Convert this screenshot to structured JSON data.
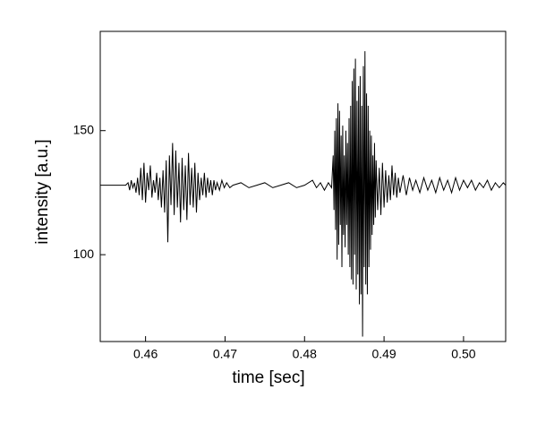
{
  "chart_data": {
    "type": "line",
    "xlabel": "time [sec]",
    "ylabel": "intensity [a.u.]",
    "color": "#000000",
    "x": [
      0.4543,
      0.4575,
      0.4578,
      0.458,
      0.4582,
      0.4584,
      0.4586,
      0.4588,
      0.459,
      0.4592,
      0.4594,
      0.4596,
      0.4598,
      0.46,
      0.4602,
      0.4604,
      0.4606,
      0.4608,
      0.461,
      0.4612,
      0.4614,
      0.4616,
      0.4618,
      0.462,
      0.4622,
      0.4624,
      0.4626,
      0.4628,
      0.463,
      0.4632,
      0.4634,
      0.4636,
      0.4638,
      0.464,
      0.4642,
      0.4644,
      0.4646,
      0.4648,
      0.465,
      0.4652,
      0.4654,
      0.4656,
      0.4658,
      0.466,
      0.4662,
      0.4664,
      0.4666,
      0.4668,
      0.467,
      0.4672,
      0.4674,
      0.4676,
      0.4678,
      0.468,
      0.4682,
      0.4684,
      0.4686,
      0.4688,
      0.469,
      0.4693,
      0.4696,
      0.4699,
      0.4702,
      0.4706,
      0.471,
      0.472,
      0.473,
      0.474,
      0.475,
      0.476,
      0.477,
      0.478,
      0.479,
      0.48,
      0.481,
      0.4815,
      0.482,
      0.4825,
      0.483,
      0.4834,
      0.4836,
      0.4837,
      0.4838,
      0.4839,
      0.484,
      0.4841,
      0.4842,
      0.4843,
      0.4844,
      0.4845,
      0.4846,
      0.4847,
      0.4848,
      0.4849,
      0.485,
      0.4851,
      0.4852,
      0.4853,
      0.4854,
      0.4855,
      0.4856,
      0.4857,
      0.4858,
      0.4859,
      0.486,
      0.4861,
      0.4862,
      0.4863,
      0.4864,
      0.4865,
      0.4866,
      0.4867,
      0.4868,
      0.4869,
      0.487,
      0.4871,
      0.4872,
      0.4873,
      0.4874,
      0.4875,
      0.4876,
      0.4877,
      0.4878,
      0.4879,
      0.488,
      0.4881,
      0.4882,
      0.4883,
      0.4884,
      0.4885,
      0.4886,
      0.4887,
      0.4888,
      0.4889,
      0.489,
      0.4892,
      0.4894,
      0.4896,
      0.4898,
      0.49,
      0.4902,
      0.4904,
      0.4906,
      0.4908,
      0.491,
      0.4912,
      0.4914,
      0.4916,
      0.4918,
      0.492,
      0.4924,
      0.4928,
      0.4932,
      0.4936,
      0.494,
      0.4945,
      0.495,
      0.4955,
      0.496,
      0.4965,
      0.497,
      0.4975,
      0.498,
      0.4985,
      0.499,
      0.4995,
      0.5,
      0.5005,
      0.501,
      0.5015,
      0.502,
      0.5025,
      0.503,
      0.5035,
      0.504,
      0.5045,
      0.505,
      0.5053
    ],
    "values": [
      128,
      128,
      129,
      126,
      130,
      127,
      129,
      125,
      131,
      124,
      135,
      122,
      137,
      121,
      133,
      126,
      136,
      123,
      130,
      125,
      133,
      122,
      131,
      119,
      134,
      117,
      138,
      105,
      140,
      120,
      145,
      116,
      142,
      119,
      137,
      113,
      139,
      118,
      136,
      114,
      141,
      120,
      135,
      119,
      137,
      117,
      133,
      122,
      131,
      124,
      133,
      123,
      131,
      125,
      130,
      124,
      130,
      126,
      129,
      126,
      130,
      127,
      129,
      127,
      128,
      129,
      127,
      128,
      129,
      127,
      128,
      129,
      127,
      128,
      130,
      127,
      129,
      126,
      129,
      127,
      140,
      118,
      150,
      110,
      155,
      98,
      161,
      104,
      158,
      112,
      148,
      95,
      152,
      108,
      140,
      103,
      150,
      112,
      145,
      100,
      155,
      95,
      160,
      90,
      170,
      88,
      175,
      100,
      179,
      86,
      162,
      92,
      168,
      80,
      172,
      84,
      160,
      67,
      176,
      95,
      182,
      88,
      165,
      84,
      160,
      95,
      150,
      102,
      148,
      108,
      140,
      112,
      145,
      115,
      138,
      118,
      135,
      116,
      137,
      119,
      134,
      121,
      132,
      122,
      136,
      124,
      133,
      123,
      131,
      125,
      132,
      124,
      131,
      126,
      130,
      125,
      131,
      126,
      130,
      125,
      131,
      126,
      130,
      125,
      131,
      126,
      130,
      127,
      130,
      126,
      129,
      127,
      130,
      126,
      129,
      127,
      129,
      128
    ],
    "xlim": [
      0.4543,
      0.5053
    ],
    "ylim": [
      65,
      190
    ],
    "xticks": [
      0.46,
      0.47,
      0.48,
      0.49,
      {
        "value": 0.5,
        "label": "0.50"
      }
    ],
    "yticks": [
      100,
      150
    ]
  }
}
